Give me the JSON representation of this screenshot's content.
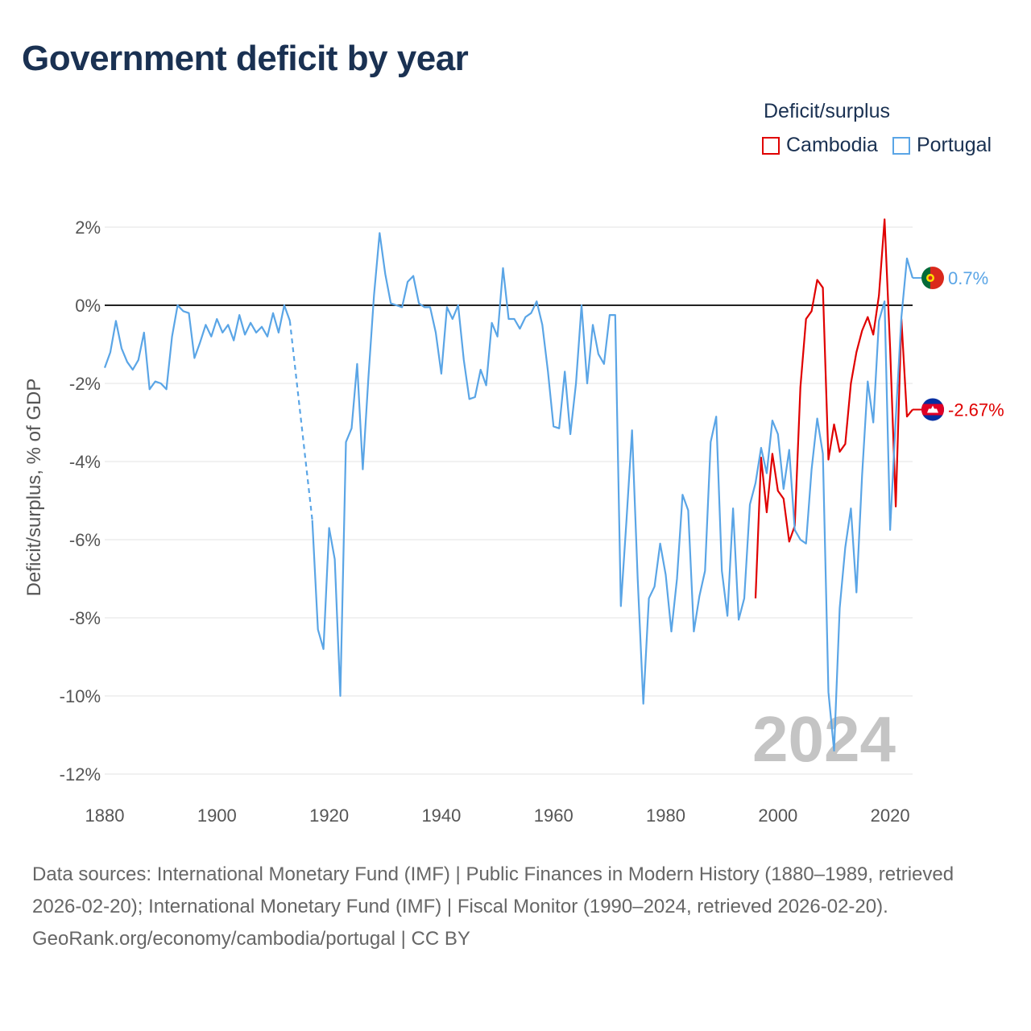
{
  "title": "Government deficit by year",
  "legend": {
    "title": "Deficit/surplus",
    "items": [
      {
        "name": "Cambodia",
        "color": "#e00000"
      },
      {
        "name": "Portugal",
        "color": "#5aa5e6"
      }
    ]
  },
  "watermark_year": "2024",
  "footer": {
    "sources": "Data sources: International Monetary Fund (IMF) | Public Finances in Modern History (1880–1989, retrieved 2026-02-20); International Monetary Fund (IMF) | Fiscal Monitor (1990–2024, retrieved 2026-02-20).",
    "attribution": "GeoRank.org/economy/cambodia/portugal | CC BY"
  },
  "chart_data": {
    "type": "line",
    "title": "Government deficit by year",
    "xlabel": "",
    "ylabel": "Deficit/surplus, % of GDP",
    "xlim": [
      1880,
      2024
    ],
    "ylim": [
      -12.5,
      2.5
    ],
    "x_ticks": [
      1880,
      1900,
      1920,
      1940,
      1960,
      1980,
      2000,
      2020
    ],
    "y_ticks": [
      2,
      0,
      -2,
      -4,
      -6,
      -8,
      -10,
      -12
    ],
    "y_tick_labels": [
      "2%",
      "0%",
      "-2%",
      "-4%",
      "-6%",
      "-8%",
      "-10%",
      "-12%"
    ],
    "zero_line": true,
    "grid": true,
    "legend_position": "top-right",
    "series": [
      {
        "name": "Portugal",
        "color": "#5aa5e6",
        "end_label": "0.7%",
        "flag": "portugal-flag",
        "x": [
          1880,
          1881,
          1882,
          1883,
          1884,
          1885,
          1886,
          1887,
          1888,
          1889,
          1890,
          1891,
          1892,
          1893,
          1894,
          1895,
          1896,
          1897,
          1898,
          1899,
          1900,
          1901,
          1902,
          1903,
          1904,
          1905,
          1906,
          1907,
          1908,
          1909,
          1910,
          1911,
          1912,
          1913,
          1917,
          1918,
          1919,
          1920,
          1921,
          1922,
          1923,
          1924,
          1925,
          1926,
          1927,
          1928,
          1929,
          1930,
          1931,
          1932,
          1933,
          1934,
          1935,
          1936,
          1937,
          1938,
          1939,
          1940,
          1941,
          1942,
          1943,
          1944,
          1945,
          1946,
          1947,
          1948,
          1949,
          1950,
          1951,
          1952,
          1953,
          1954,
          1955,
          1956,
          1957,
          1958,
          1959,
          1960,
          1961,
          1962,
          1963,
          1964,
          1965,
          1966,
          1967,
          1968,
          1969,
          1970,
          1971,
          1972,
          1973,
          1974,
          1975,
          1976,
          1977,
          1978,
          1979,
          1980,
          1981,
          1982,
          1983,
          1984,
          1985,
          1986,
          1987,
          1988,
          1989,
          1990,
          1991,
          1992,
          1993,
          1994,
          1995,
          1996,
          1997,
          1998,
          1999,
          2000,
          2001,
          2002,
          2003,
          2004,
          2005,
          2006,
          2007,
          2008,
          2009,
          2010,
          2011,
          2012,
          2013,
          2014,
          2015,
          2016,
          2017,
          2018,
          2019,
          2020,
          2021,
          2022,
          2023,
          2024
        ],
        "values": [
          -1.6,
          -1.2,
          -0.4,
          -1.1,
          -1.45,
          -1.65,
          -1.4,
          -0.7,
          -2.15,
          -1.95,
          -2.0,
          -2.15,
          -0.8,
          0.0,
          -0.15,
          -0.2,
          -1.35,
          -0.95,
          -0.5,
          -0.8,
          -0.35,
          -0.7,
          -0.5,
          -0.9,
          -0.25,
          -0.75,
          -0.45,
          -0.7,
          -0.55,
          -0.8,
          -0.2,
          -0.7,
          0.0,
          -0.4,
          -5.5,
          -8.3,
          -8.8,
          -5.7,
          -6.5,
          -10.0,
          -3.5,
          -3.15,
          -1.5,
          -4.2,
          -1.85,
          0.25,
          1.85,
          0.8,
          0.05,
          0.0,
          -0.05,
          0.6,
          0.75,
          0.05,
          -0.05,
          -0.05,
          -0.7,
          -1.75,
          -0.05,
          -0.35,
          0.0,
          -1.4,
          -2.4,
          -2.35,
          -1.65,
          -2.05,
          -0.45,
          -0.8,
          0.95,
          -0.35,
          -0.35,
          -0.6,
          -0.3,
          -0.2,
          0.1,
          -0.5,
          -1.7,
          -3.1,
          -3.15,
          -1.7,
          -3.3,
          -2.0,
          0.0,
          -2.0,
          -0.5,
          -1.25,
          -1.5,
          -0.25,
          -0.25,
          -7.7,
          -5.5,
          -3.2,
          -7.0,
          -10.2,
          -7.5,
          -7.2,
          -6.1,
          -6.9,
          -8.35,
          -7.0,
          -4.85,
          -5.25,
          -8.35,
          -7.45,
          -6.8,
          -3.5,
          -2.85,
          -6.8,
          -7.95,
          -5.2,
          -8.05,
          -7.5,
          -5.1,
          -4.55,
          -3.65,
          -4.3,
          -2.95,
          -3.3,
          -4.7,
          -3.7,
          -5.75,
          -6.0,
          -6.1,
          -4.2,
          -2.9,
          -3.8,
          -9.9,
          -11.4,
          -7.75,
          -6.2,
          -5.2,
          -7.35,
          -4.35,
          -1.95,
          -3.0,
          -0.4,
          0.1,
          -5.75,
          -2.9,
          -0.3,
          1.2,
          0.7
        ]
      },
      {
        "name": "Cambodia",
        "color": "#e00000",
        "end_label": "-2.67%",
        "flag": "cambodia-flag",
        "x": [
          1996,
          1997,
          1998,
          1999,
          2000,
          2001,
          2002,
          2003,
          2004,
          2005,
          2006,
          2007,
          2008,
          2009,
          2010,
          2011,
          2012,
          2013,
          2014,
          2015,
          2016,
          2017,
          2018,
          2019,
          2020,
          2021,
          2022,
          2023,
          2024
        ],
        "values": [
          -7.5,
          -3.9,
          -5.3,
          -3.8,
          -4.75,
          -4.95,
          -6.05,
          -5.65,
          -2.1,
          -0.35,
          -0.15,
          0.65,
          0.45,
          -3.95,
          -3.05,
          -3.75,
          -3.55,
          -2.0,
          -1.2,
          -0.65,
          -0.3,
          -0.75,
          0.25,
          2.2,
          -1.1,
          -5.15,
          -0.35,
          -2.85,
          -2.67
        ]
      }
    ]
  }
}
